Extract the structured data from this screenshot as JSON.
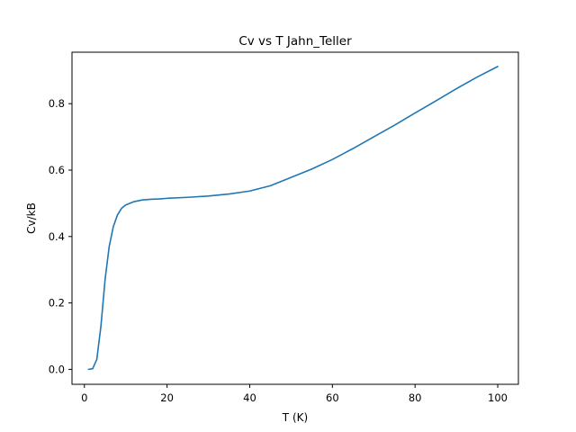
{
  "chart_data": {
    "type": "line",
    "title": "Cv vs T Jahn_Teller",
    "xlabel": "T (K)",
    "ylabel": "Cv/kB",
    "xlim": [
      -3,
      105
    ],
    "ylim": [
      -0.045,
      0.955
    ],
    "xticks": [
      0,
      20,
      40,
      60,
      80,
      100
    ],
    "yticks": [
      0.0,
      0.2,
      0.4,
      0.6,
      0.8
    ],
    "xtick_labels": [
      "0",
      "20",
      "40",
      "60",
      "80",
      "100"
    ],
    "ytick_labels": [
      "0.0",
      "0.2",
      "0.4",
      "0.6",
      "0.8"
    ],
    "grid": false,
    "legend": "none",
    "series": [
      {
        "color": "#1f77b4",
        "x": [
          1,
          2,
          3,
          4,
          5,
          6,
          7,
          8,
          9,
          10,
          11,
          12,
          14,
          16,
          18,
          20,
          25,
          30,
          35,
          40,
          45,
          50,
          55,
          60,
          65,
          70,
          75,
          80,
          85,
          90,
          95,
          100
        ],
        "y": [
          0.0,
          0.002,
          0.03,
          0.13,
          0.27,
          0.37,
          0.43,
          0.465,
          0.485,
          0.495,
          0.5,
          0.505,
          0.51,
          0.512,
          0.513,
          0.515,
          0.518,
          0.522,
          0.528,
          0.537,
          0.553,
          0.578,
          0.603,
          0.632,
          0.665,
          0.7,
          0.735,
          0.772,
          0.808,
          0.845,
          0.88,
          0.912
        ]
      }
    ]
  }
}
